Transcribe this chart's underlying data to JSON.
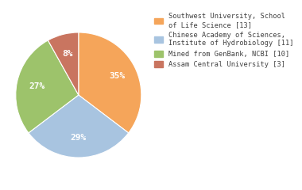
{
  "labels": [
    "Southwest University, School\nof Life Science [13]",
    "Chinese Academy of Sciences,\nInstitute of Hydrobiology [11]",
    "Mined from GenBank, NCBI [10]",
    "Assam Central University [3]"
  ],
  "values": [
    35,
    29,
    27,
    8
  ],
  "colors": [
    "#F5A55A",
    "#A8C4E0",
    "#9DC36B",
    "#C97560"
  ],
  "startangle": 90,
  "background_color": "#ffffff",
  "text_color": "#404040",
  "pct_fontsize": 8.0
}
